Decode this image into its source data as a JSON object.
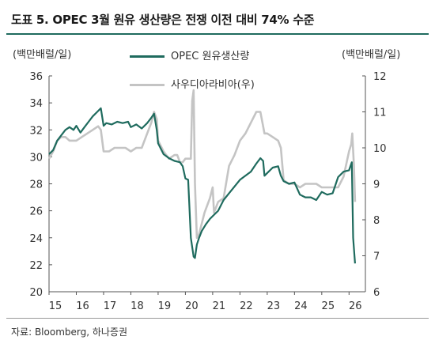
{
  "title": "도표 5. OPEC 3월 원유 생산량은 전쟁 이전 대비 74% 수준",
  "source": "자료: Bloomberg, 하나증권",
  "colors": {
    "opec": "#1f6b5e",
    "saudi": "#c4c4c4",
    "accent": "#1f6b5e"
  },
  "chart_data": {
    "type": "line",
    "left_axis_label": "(백만배럴/일)",
    "right_axis_label": "(백만배럴/일)",
    "x_ticks": [
      "15",
      "16",
      "17",
      "18",
      "19",
      "20",
      "21",
      "22",
      "23",
      "24",
      "25",
      "26"
    ],
    "xlim": [
      2015,
      2026.6
    ],
    "ylim_left": [
      20,
      36
    ],
    "y_ticks_left": [
      20,
      22,
      24,
      26,
      28,
      30,
      32,
      34,
      36
    ],
    "ylim_right": [
      6,
      12
    ],
    "y_ticks_right": [
      6,
      7,
      8,
      9,
      10,
      11,
      12
    ],
    "series": [
      {
        "name": "OPEC 원유생산량",
        "axis": "left",
        "x": [
          2015.0,
          2015.15,
          2015.3,
          2015.45,
          2015.6,
          2015.75,
          2015.9,
          2016.0,
          2016.15,
          2016.3,
          2016.45,
          2016.6,
          2016.75,
          2016.9,
          2017.0,
          2017.1,
          2017.3,
          2017.5,
          2017.7,
          2017.9,
          2018.0,
          2018.2,
          2018.4,
          2018.6,
          2018.75,
          2018.85,
          2018.95,
          2019.0,
          2019.2,
          2019.4,
          2019.6,
          2019.8,
          2019.9,
          2020.0,
          2020.1,
          2020.2,
          2020.3,
          2020.35,
          2020.42,
          2020.5,
          2020.6,
          2020.75,
          2020.9,
          2021.0,
          2021.2,
          2021.4,
          2021.6,
          2021.8,
          2022.0,
          2022.2,
          2022.4,
          2022.6,
          2022.75,
          2022.85,
          2022.9,
          2023.0,
          2023.2,
          2023.4,
          2023.5,
          2023.6,
          2023.8,
          2024.0,
          2024.2,
          2024.4,
          2024.6,
          2024.8,
          2025.0,
          2025.2,
          2025.4,
          2025.6,
          2025.8,
          2026.0,
          2026.1,
          2026.15,
          2026.22
        ],
        "values": [
          30.2,
          30.5,
          31.2,
          31.6,
          32.0,
          32.2,
          32.0,
          32.3,
          31.8,
          32.2,
          32.6,
          33.0,
          33.3,
          33.6,
          32.3,
          32.5,
          32.4,
          32.6,
          32.5,
          32.6,
          32.2,
          32.4,
          32.1,
          32.5,
          32.9,
          33.2,
          32.0,
          31.0,
          30.2,
          29.9,
          29.7,
          29.6,
          29.3,
          28.4,
          28.3,
          24.0,
          22.6,
          22.5,
          23.5,
          24.0,
          24.5,
          25.0,
          25.4,
          25.6,
          26.0,
          26.8,
          27.3,
          27.8,
          28.3,
          28.6,
          28.9,
          29.5,
          29.9,
          29.7,
          28.6,
          28.8,
          29.2,
          29.3,
          28.6,
          28.2,
          28.0,
          28.1,
          27.2,
          27.0,
          27.0,
          26.8,
          27.4,
          27.2,
          27.3,
          28.5,
          28.9,
          29.0,
          29.6,
          24.0,
          22.1
        ]
      },
      {
        "name": "사우디아라비아(우)",
        "axis": "right",
        "x": [
          2015.0,
          2015.15,
          2015.3,
          2015.45,
          2015.6,
          2015.75,
          2015.9,
          2016.0,
          2016.2,
          2016.4,
          2016.6,
          2016.8,
          2016.9,
          2017.0,
          2017.2,
          2017.4,
          2017.6,
          2017.8,
          2018.0,
          2018.2,
          2018.4,
          2018.6,
          2018.75,
          2018.85,
          2018.95,
          2019.0,
          2019.2,
          2019.4,
          2019.6,
          2019.7,
          2019.8,
          2019.9,
          2020.0,
          2020.1,
          2020.2,
          2020.25,
          2020.3,
          2020.35,
          2020.42,
          2020.5,
          2020.7,
          2020.9,
          2021.0,
          2021.05,
          2021.2,
          2021.4,
          2021.6,
          2021.8,
          2022.0,
          2022.2,
          2022.4,
          2022.6,
          2022.75,
          2022.85,
          2022.9,
          2023.0,
          2023.2,
          2023.4,
          2023.5,
          2023.6,
          2023.8,
          2024.0,
          2024.2,
          2024.4,
          2024.6,
          2024.8,
          2025.0,
          2025.2,
          2025.4,
          2025.6,
          2025.8,
          2026.0,
          2026.08,
          2026.12,
          2026.18,
          2026.22
        ],
        "values": [
          9.7,
          9.9,
          10.2,
          10.3,
          10.3,
          10.2,
          10.2,
          10.2,
          10.3,
          10.4,
          10.5,
          10.6,
          10.5,
          9.9,
          9.9,
          10.0,
          10.0,
          10.0,
          9.9,
          10.0,
          10.0,
          10.4,
          10.7,
          11.0,
          10.8,
          10.2,
          9.9,
          9.7,
          9.8,
          9.8,
          9.6,
          9.6,
          9.7,
          9.7,
          9.7,
          11.3,
          11.6,
          9.0,
          7.5,
          7.6,
          8.2,
          8.6,
          8.9,
          8.2,
          8.5,
          8.6,
          9.5,
          9.8,
          10.2,
          10.4,
          10.7,
          11.0,
          11.0,
          10.6,
          10.4,
          10.4,
          10.3,
          10.2,
          10.0,
          9.1,
          9.0,
          9.0,
          8.9,
          9.0,
          9.0,
          9.0,
          8.9,
          8.9,
          8.9,
          8.9,
          9.2,
          9.9,
          10.1,
          10.4,
          9.5,
          8.5
        ]
      }
    ]
  }
}
